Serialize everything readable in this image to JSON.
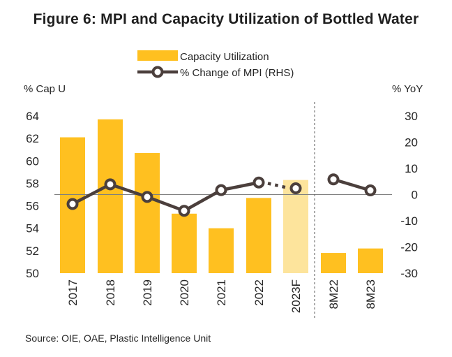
{
  "title": "Figure 6: MPI and Capacity Utilization of Bottled Water",
  "source": "Source: OIE, OAE, Plastic Intelligence Unit",
  "chart_data": {
    "type": "bar",
    "categories": [
      "2017",
      "2018",
      "2019",
      "2020",
      "2021",
      "2022",
      "2023F",
      "8M22",
      "8M23"
    ],
    "ylabel_left": "% Cap U",
    "ylabel_right": "% YoY",
    "ylim_left": [
      50,
      64
    ],
    "yticks_left": [
      "50",
      "52",
      "54",
      "56",
      "58",
      "60",
      "62",
      "64"
    ],
    "ylim_right": [
      -30,
      30
    ],
    "yticks_right": [
      "-30",
      "-20",
      "-10",
      "0",
      "10",
      "20",
      "30"
    ],
    "series": [
      {
        "name": "Capacity Utilization",
        "type": "bar",
        "axis": "left",
        "values": [
          62.1,
          63.7,
          60.7,
          55.3,
          54.0,
          56.7,
          58.3,
          51.8,
          52.2
        ],
        "colors": [
          "#ffc020",
          "#ffc020",
          "#ffc020",
          "#ffc020",
          "#ffc020",
          "#ffc020",
          "#fde49c",
          "#ffc020",
          "#ffc020"
        ]
      },
      {
        "name": "% Change of MPI (RHS)",
        "type": "line",
        "axis": "right",
        "values": [
          -3.6,
          3.9,
          -0.9,
          -6.2,
          1.7,
          4.6,
          2.4,
          5.8,
          1.6
        ],
        "color": "#4b3f3c",
        "segments": [
          [
            0,
            5
          ],
          [
            7,
            8
          ]
        ],
        "dotted_segments": [
          [
            5,
            6
          ]
        ]
      }
    ],
    "divider_after_category": "2023F",
    "grid": false,
    "legend_position": "top-center"
  }
}
